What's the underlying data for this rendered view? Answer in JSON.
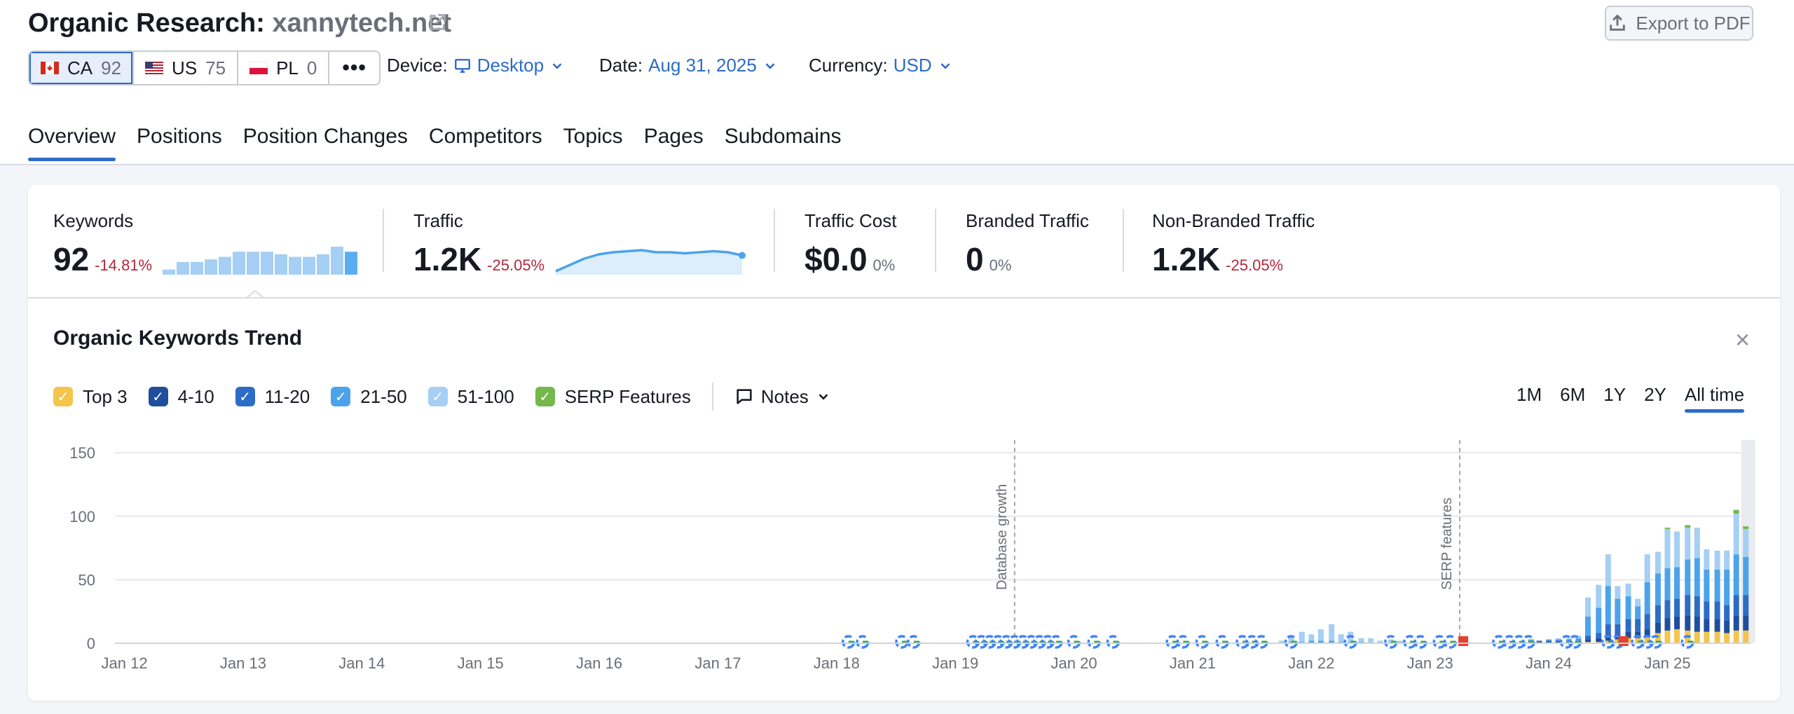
{
  "header": {
    "title_prefix": "Organic Research:",
    "domain": "xannytech.net",
    "export_label": "Export to PDF"
  },
  "databases": [
    {
      "code": "CA",
      "count": "92",
      "flag": "ca-flag"
    },
    {
      "code": "US",
      "count": "75",
      "flag": "us-flag"
    },
    {
      "code": "PL",
      "count": "0",
      "flag": "pl-flag"
    }
  ],
  "more_label": "•••",
  "filters": {
    "device_label": "Device:",
    "device_value": "Desktop",
    "date_label": "Date:",
    "date_value": "Aug 31, 2025",
    "currency_label": "Currency:",
    "currency_value": "USD"
  },
  "tabs": [
    "Overview",
    "Positions",
    "Position Changes",
    "Competitors",
    "Topics",
    "Pages",
    "Subdomains"
  ],
  "metrics": {
    "keywords": {
      "label": "Keywords",
      "value": "92",
      "delta": "-14.81%",
      "spark": [
        2,
        5,
        5,
        6,
        7,
        9,
        9,
        9,
        8,
        7,
        7,
        8,
        11,
        9
      ]
    },
    "traffic": {
      "label": "Traffic",
      "value": "1.2K",
      "delta": "-25.05%",
      "spark": [
        1,
        4,
        7,
        9,
        10,
        10.5,
        11,
        10,
        10,
        9.5,
        10,
        10.5,
        10,
        8.5
      ]
    },
    "traffic_cost": {
      "label": "Traffic Cost",
      "value": "$0.0",
      "delta": "0%"
    },
    "branded": {
      "label": "Branded Traffic",
      "value": "0",
      "delta": "0%"
    },
    "non_branded": {
      "label": "Non-Branded Traffic",
      "value": "1.2K",
      "delta": "-25.05%"
    }
  },
  "trend": {
    "title": "Organic Keywords Trend",
    "close": "×",
    "legend": [
      {
        "label": "Top 3",
        "color": "#f3c54c"
      },
      {
        "label": "4-10",
        "color": "#1f4e9d"
      },
      {
        "label": "11-20",
        "color": "#2d6cc6"
      },
      {
        "label": "21-50",
        "color": "#4ca3ec"
      },
      {
        "label": "51-100",
        "color": "#a5cff4"
      },
      {
        "label": "SERP Features",
        "color": "#74b74a"
      }
    ],
    "notes_label": "Notes",
    "ranges": [
      "1M",
      "6M",
      "1Y",
      "2Y",
      "All time"
    ],
    "active_range": "All time"
  },
  "chart_data": {
    "type": "bar",
    "stacked": true,
    "ylim": [
      0,
      160
    ],
    "yticks": [
      0,
      50,
      100,
      150
    ],
    "x_ticks": [
      "Jan 12",
      "Jan 13",
      "Jan 14",
      "Jan 15",
      "Jan 16",
      "Jan 17",
      "Jan 18",
      "Jan 19",
      "Jan 20",
      "Jan 21",
      "Jan 22",
      "Jan 23",
      "Jan 24",
      "Jan 25"
    ],
    "x_tick_years": [
      2012,
      2013,
      2014,
      2015,
      2016,
      2017,
      2018,
      2019,
      2020,
      2021,
      2022,
      2023,
      2024,
      2025
    ],
    "x_range": [
      2011.92,
      2025.7
    ],
    "grid": true,
    "annotations": [
      {
        "x": 2019.5,
        "label": "Database growth"
      },
      {
        "x": 2023.25,
        "label": "SERP features"
      }
    ],
    "series_order": [
      "Top 3",
      "4-10",
      "11-20",
      "21-50",
      "51-100",
      "SERP Features"
    ],
    "series_colors": [
      "#f3c54c",
      "#1f4e9d",
      "#2d6cc6",
      "#4ca3ec",
      "#a5cff4",
      "#74b74a"
    ],
    "points": [
      {
        "x": 2021.75,
        "v": [
          0,
          0,
          0,
          0,
          2,
          0
        ]
      },
      {
        "x": 2021.83,
        "v": [
          0,
          0,
          0,
          1,
          4,
          0
        ]
      },
      {
        "x": 2021.92,
        "v": [
          0,
          0,
          0,
          1,
          8,
          0
        ]
      },
      {
        "x": 2022.0,
        "v": [
          0,
          0,
          0,
          2,
          5,
          0
        ]
      },
      {
        "x": 2022.08,
        "v": [
          0,
          0,
          0,
          2,
          9,
          0
        ]
      },
      {
        "x": 2022.17,
        "v": [
          0,
          0,
          0,
          2,
          13,
          0
        ]
      },
      {
        "x": 2022.25,
        "v": [
          0,
          0,
          0,
          1,
          6,
          0
        ]
      },
      {
        "x": 2022.33,
        "v": [
          0,
          0,
          0,
          1,
          8,
          0
        ]
      },
      {
        "x": 2022.42,
        "v": [
          0,
          0,
          0,
          1,
          3,
          0
        ]
      },
      {
        "x": 2022.5,
        "v": [
          0,
          0,
          0,
          0,
          4,
          0
        ]
      },
      {
        "x": 2022.58,
        "v": [
          0,
          0,
          0,
          0,
          2,
          0
        ]
      },
      {
        "x": 2022.67,
        "v": [
          0,
          0,
          0,
          0,
          3,
          0
        ]
      },
      {
        "x": 2022.75,
        "v": [
          0,
          0,
          0,
          0,
          2,
          0
        ]
      },
      {
        "x": 2023.85,
        "v": [
          0,
          1,
          1,
          1,
          0,
          0
        ]
      },
      {
        "x": 2023.92,
        "v": [
          0,
          1,
          1,
          0,
          0,
          0
        ]
      },
      {
        "x": 2024.0,
        "v": [
          0,
          1,
          1,
          1,
          0,
          0
        ]
      },
      {
        "x": 2024.08,
        "v": [
          0,
          1,
          1,
          1,
          1,
          0
        ]
      },
      {
        "x": 2024.17,
        "v": [
          0,
          1,
          1,
          1,
          1,
          0
        ]
      },
      {
        "x": 2024.25,
        "v": [
          0,
          1,
          1,
          2,
          2,
          0
        ]
      },
      {
        "x": 2024.33,
        "v": [
          1,
          2,
          3,
          15,
          15,
          0
        ]
      },
      {
        "x": 2024.42,
        "v": [
          1,
          3,
          4,
          20,
          18,
          0
        ]
      },
      {
        "x": 2024.5,
        "v": [
          2,
          5,
          8,
          30,
          25,
          0
        ]
      },
      {
        "x": 2024.58,
        "v": [
          3,
          4,
          8,
          20,
          10,
          0
        ]
      },
      {
        "x": 2024.67,
        "v": [
          4,
          5,
          10,
          18,
          10,
          0
        ]
      },
      {
        "x": 2024.75,
        "v": [
          4,
          5,
          10,
          10,
          6,
          0
        ]
      },
      {
        "x": 2024.83,
        "v": [
          5,
          6,
          12,
          25,
          22,
          0
        ]
      },
      {
        "x": 2024.92,
        "v": [
          8,
          8,
          14,
          25,
          17,
          0
        ]
      },
      {
        "x": 2025.0,
        "v": [
          10,
          10,
          14,
          25,
          31,
          1
        ]
      },
      {
        "x": 2025.08,
        "v": [
          11,
          10,
          14,
          25,
          28,
          0
        ]
      },
      {
        "x": 2025.17,
        "v": [
          10,
          12,
          16,
          28,
          25,
          2
        ]
      },
      {
        "x": 2025.25,
        "v": [
          9,
          12,
          16,
          30,
          24,
          0
        ]
      },
      {
        "x": 2025.33,
        "v": [
          9,
          10,
          14,
          25,
          16,
          0
        ]
      },
      {
        "x": 2025.42,
        "v": [
          9,
          10,
          14,
          25,
          15,
          0
        ]
      },
      {
        "x": 2025.5,
        "v": [
          8,
          10,
          12,
          28,
          15,
          0
        ]
      },
      {
        "x": 2025.58,
        "v": [
          10,
          12,
          16,
          32,
          32,
          3
        ]
      },
      {
        "x": 2025.66,
        "v": [
          10,
          12,
          16,
          30,
          22,
          2
        ]
      }
    ],
    "serp_icons": [
      2018.1,
      2018.22,
      2018.55,
      2018.65,
      2019.15,
      2019.22,
      2019.29,
      2019.36,
      2019.43,
      2019.5,
      2019.57,
      2019.64,
      2019.71,
      2019.78,
      2019.85,
      2020.0,
      2020.17,
      2020.33,
      2020.83,
      2020.92,
      2021.08,
      2021.25,
      2021.42,
      2021.5,
      2021.58,
      2021.83,
      2022.33,
      2022.67,
      2022.83,
      2022.92,
      2023.08,
      2023.17,
      2023.58,
      2023.67,
      2023.75,
      2023.83,
      2024.15,
      2024.22,
      2024.5,
      2024.58,
      2024.75,
      2024.83,
      2024.9,
      2025.17
    ],
    "notes_markers": [
      2023.25,
      2024.6
    ]
  }
}
